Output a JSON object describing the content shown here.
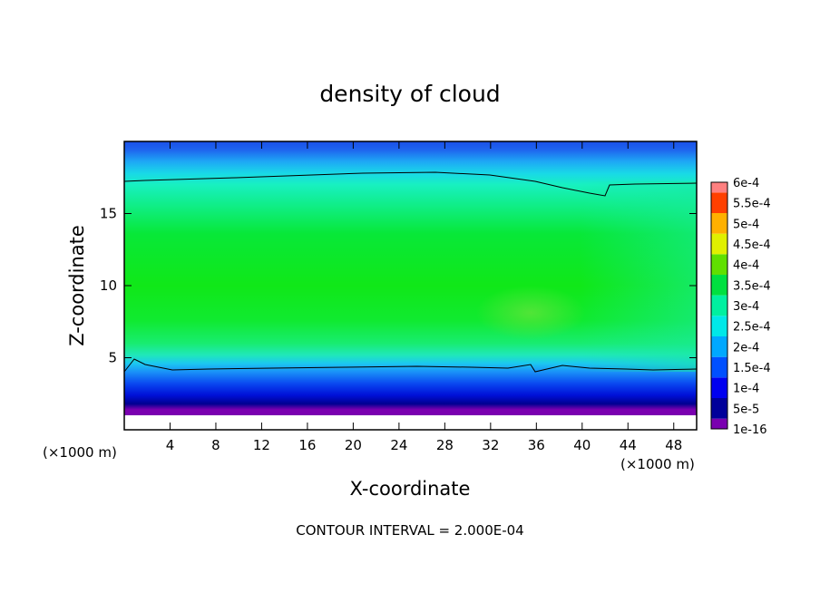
{
  "chart_data": {
    "type": "heatmap",
    "title": "density of cloud",
    "xlabel": "X-coordinate",
    "ylabel": "Z-coordinate",
    "x_unit": "(×1000 m)",
    "y_unit": "(×1000 m)",
    "xlim": [
      0,
      50
    ],
    "ylim": [
      0,
      20
    ],
    "x_ticks": [
      "4",
      "8",
      "12",
      "16",
      "20",
      "24",
      "28",
      "32",
      "36",
      "40",
      "44",
      "48"
    ],
    "x_tick_values": [
      4,
      8,
      12,
      16,
      20,
      24,
      28,
      32,
      36,
      40,
      44,
      48
    ],
    "y_ticks": [
      "5",
      "10",
      "15"
    ],
    "y_tick_values": [
      5,
      10,
      15
    ],
    "colorbar": {
      "levels": [
        "1e-16",
        "5e-5",
        "1e-4",
        "1.5e-4",
        "2e-4",
        "2.5e-4",
        "3e-4",
        "3.5e-4",
        "4e-4",
        "4.5e-4",
        "5e-4",
        "5.5e-4",
        "6e-4"
      ],
      "colors": [
        "#7a00b0",
        "#00009a",
        "#0000f0",
        "#0050ff",
        "#00a8ff",
        "#00e8e8",
        "#00f0a0",
        "#00e040",
        "#60e000",
        "#e0f000",
        "#ffb000",
        "#ff4000",
        "#ff8080"
      ]
    },
    "fields": [
      {
        "name": "cloud density",
        "z_range_km": [
          1.2,
          19.8
        ]
      }
    ],
    "contour_line_level": "1e-4",
    "footer": "CONTOUR INTERVAL = 2.000E-04"
  }
}
